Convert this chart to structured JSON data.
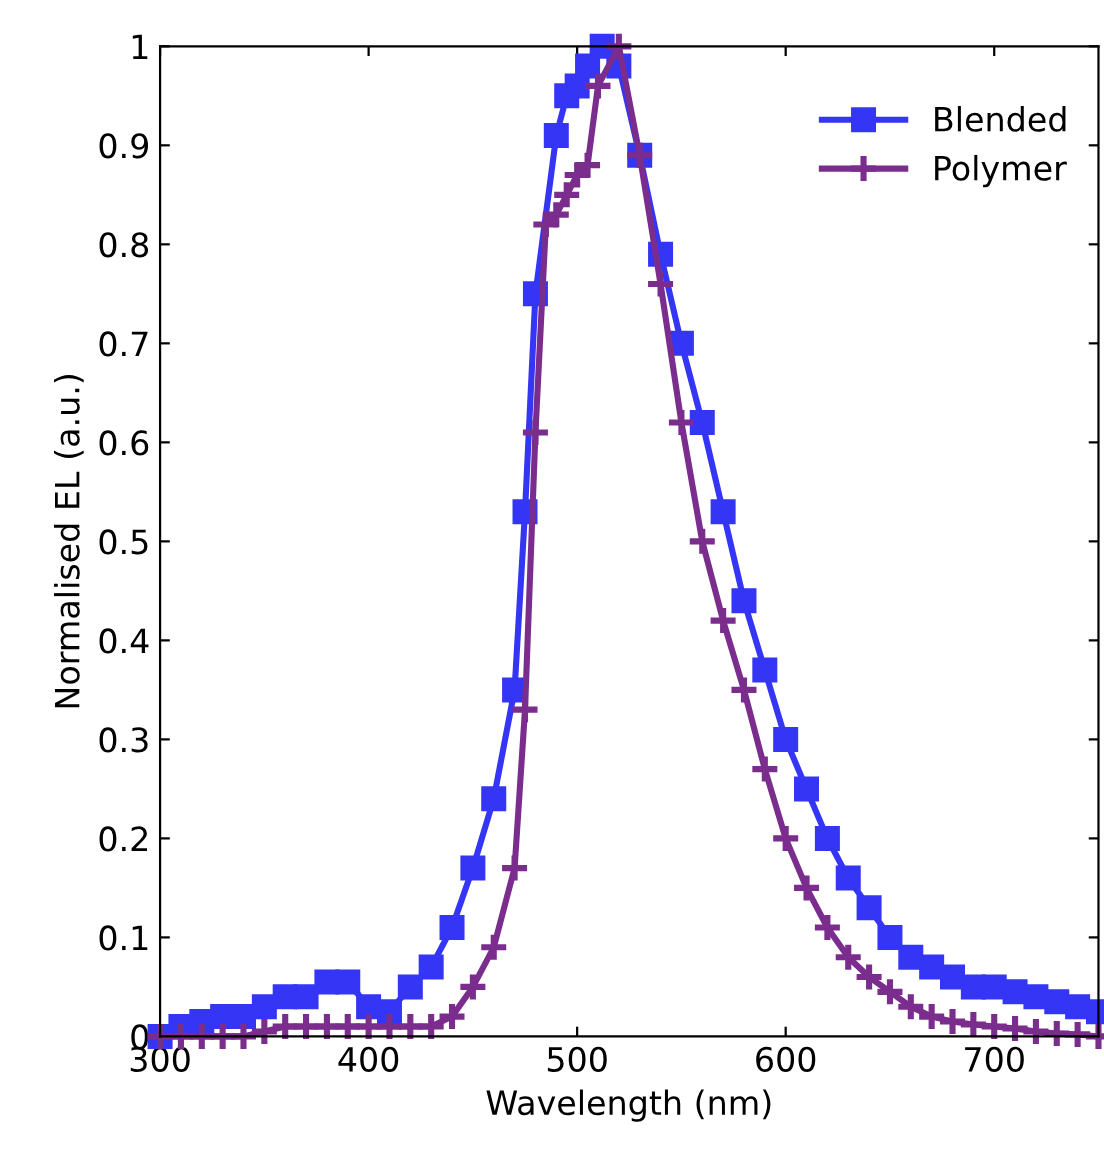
{
  "chart_data": {
    "type": "line",
    "xlabel": "Wavelength (nm)",
    "ylabel": "Normalised EL (a.u.)",
    "xlim": [
      300,
      750
    ],
    "xticks": [
      300,
      400,
      500,
      600,
      700
    ],
    "ylim": [
      0,
      1
    ],
    "yticks": [
      0,
      0.1,
      0.2,
      0.3,
      0.4,
      0.5,
      0.6,
      0.7,
      0.8,
      0.9,
      1
    ],
    "grid": false,
    "legend": "top right",
    "line_style": "solid",
    "series": [
      {
        "name": "Blended",
        "color": "#3535f5",
        "marker": "square",
        "x": [
          300,
          310,
          320,
          330,
          340,
          350,
          360,
          370,
          380,
          390,
          400,
          410,
          420,
          430,
          440,
          450,
          460,
          470,
          475,
          480,
          490,
          495,
          500,
          505,
          512,
          520,
          530,
          540,
          550,
          560,
          570,
          580,
          590,
          600,
          610,
          620,
          630,
          640,
          650,
          660,
          670,
          680,
          690,
          700,
          710,
          720,
          730,
          740,
          750
        ],
        "values": [
          0.0,
          0.01,
          0.015,
          0.02,
          0.02,
          0.03,
          0.04,
          0.04,
          0.055,
          0.055,
          0.03,
          0.025,
          0.05,
          0.07,
          0.11,
          0.17,
          0.24,
          0.35,
          0.53,
          0.75,
          0.91,
          0.95,
          0.96,
          0.98,
          1.0,
          0.98,
          0.89,
          0.79,
          0.7,
          0.62,
          0.53,
          0.44,
          0.37,
          0.3,
          0.25,
          0.2,
          0.16,
          0.13,
          0.1,
          0.08,
          0.07,
          0.06,
          0.05,
          0.05,
          0.045,
          0.04,
          0.035,
          0.03,
          0.025
        ]
      },
      {
        "name": "Polymer",
        "color": "#7b2d8e",
        "marker": "cross",
        "x": [
          300,
          310,
          320,
          330,
          340,
          350,
          360,
          370,
          380,
          390,
          400,
          410,
          420,
          430,
          440,
          450,
          460,
          470,
          475,
          480,
          485,
          490,
          495,
          500,
          505,
          510,
          520,
          530,
          540,
          550,
          560,
          570,
          580,
          590,
          600,
          610,
          620,
          630,
          640,
          650,
          660,
          670,
          680,
          690,
          700,
          710,
          720,
          730,
          740,
          750
        ],
        "values": [
          0.0,
          0.0,
          0.0,
          0.0,
          0.0,
          0.005,
          0.01,
          0.01,
          0.01,
          0.01,
          0.01,
          0.01,
          0.01,
          0.01,
          0.02,
          0.05,
          0.09,
          0.17,
          0.33,
          0.61,
          0.82,
          0.83,
          0.85,
          0.87,
          0.88,
          0.96,
          1.0,
          0.89,
          0.76,
          0.62,
          0.5,
          0.42,
          0.35,
          0.27,
          0.2,
          0.15,
          0.11,
          0.08,
          0.06,
          0.045,
          0.03,
          0.02,
          0.015,
          0.012,
          0.01,
          0.008,
          0.005,
          0.003,
          0.002,
          0.0
        ]
      }
    ]
  }
}
